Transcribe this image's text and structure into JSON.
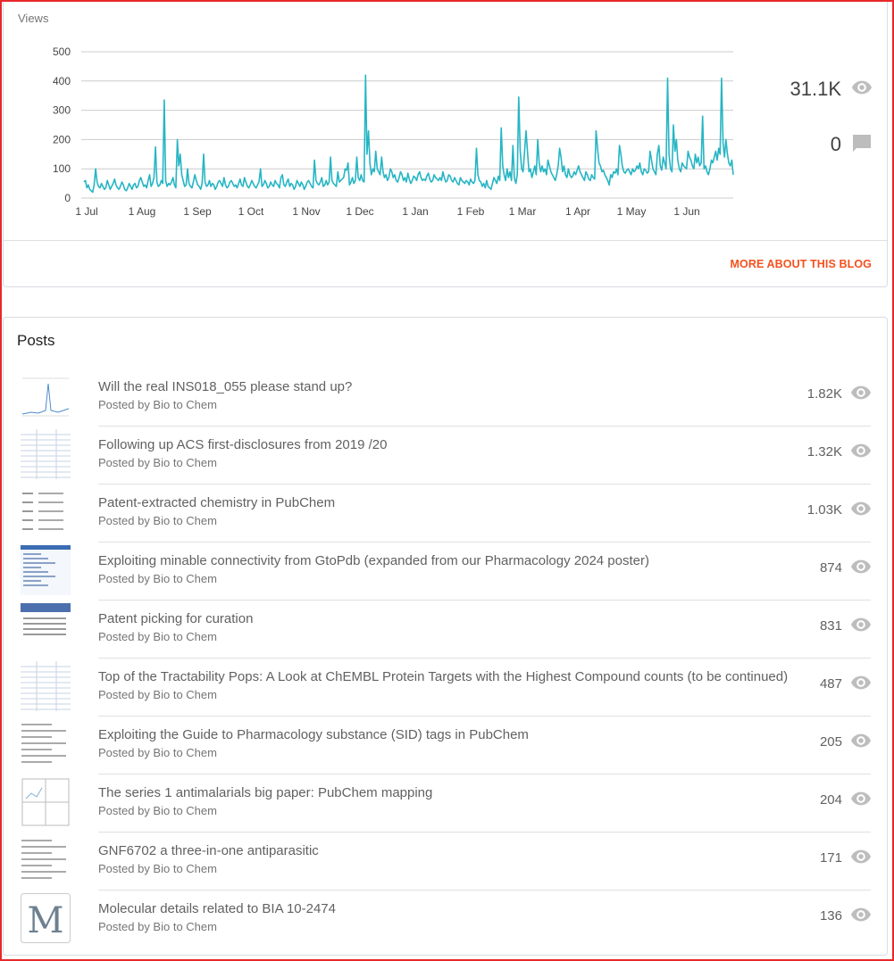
{
  "stats": {
    "views_label": "Views",
    "total_views": "31.1K",
    "total_comments": "0",
    "more_link": "MORE ABOUT THIS BLOG",
    "accent_color": "#26b5c4",
    "link_color": "#f4511e"
  },
  "chart_data": {
    "type": "line",
    "ylim": [
      0,
      500
    ],
    "yticks": [
      "0",
      "100",
      "200",
      "300",
      "400",
      "500"
    ],
    "xticks": [
      "1 Jul",
      "1 Aug",
      "1 Sep",
      "1 Oct",
      "1 Nov",
      "1 Dec",
      "1 Jan",
      "1 Feb",
      "1 Mar",
      "1 Apr",
      "1 May",
      "1 Jun"
    ],
    "grid": true,
    "series": [
      {
        "color": "#26b5c4",
        "values": [
          55,
          60,
          35,
          45,
          30,
          25,
          20,
          45,
          100,
          55,
          40,
          35,
          50,
          40,
          30,
          35,
          60,
          45,
          30,
          40,
          50,
          65,
          45,
          35,
          30,
          40,
          55,
          45,
          30,
          25,
          35,
          50,
          40,
          30,
          45,
          50,
          35,
          40,
          60,
          70,
          55,
          40,
          45,
          35,
          60,
          80,
          40,
          50,
          70,
          175,
          55,
          40,
          45,
          60,
          50,
          335,
          60,
          40,
          50,
          45,
          55,
          70,
          45,
          35,
          200,
          110,
          150,
          80,
          60,
          40,
          45,
          100,
          50,
          40,
          35,
          55,
          80,
          60,
          45,
          40,
          30,
          50,
          150,
          55,
          40,
          45,
          60,
          40,
          50,
          45,
          30,
          40,
          55,
          60,
          50,
          40,
          70,
          45,
          35,
          40,
          55,
          60,
          50,
          40,
          45,
          35,
          50,
          65,
          45,
          40,
          70,
          55,
          40,
          35,
          45,
          60,
          50,
          40,
          35,
          45,
          55,
          100,
          40,
          45,
          60,
          50,
          35,
          40,
          55,
          45,
          40,
          60,
          50,
          45,
          35,
          70,
          80,
          45,
          40,
          55,
          65,
          40,
          50,
          45,
          30,
          40,
          60,
          50,
          40,
          55,
          45,
          30,
          40,
          55,
          60,
          50,
          40,
          35,
          130,
          60,
          50,
          45,
          55,
          70,
          40,
          45,
          60,
          45,
          55,
          140,
          60,
          50,
          45,
          40,
          90,
          55,
          60,
          65,
          70,
          100,
          95,
          120,
          45,
          55,
          70,
          50,
          60,
          140,
          70,
          60,
          80,
          60,
          55,
          420,
          150,
          230,
          120,
          80,
          100,
          90,
          160,
          100,
          90,
          80,
          140,
          90,
          70,
          80,
          60,
          70,
          100,
          90,
          70,
          80,
          60,
          55,
          70,
          90,
          80,
          60,
          70,
          55,
          85,
          65,
          50,
          60,
          75,
          70,
          60,
          80,
          90,
          70,
          60,
          65,
          60,
          75,
          85,
          65,
          55,
          60,
          80,
          70,
          65,
          60,
          70,
          60,
          90,
          70,
          55,
          60,
          80,
          75,
          60,
          55,
          70,
          60,
          50,
          45,
          70,
          60,
          55,
          50,
          60,
          55,
          45,
          65,
          55,
          50,
          60,
          170,
          80,
          60,
          55,
          40,
          50,
          35,
          60,
          40,
          35,
          30,
          50,
          70,
          60,
          50,
          75,
          60,
          240,
          110,
          80,
          60,
          100,
          70,
          90,
          60,
          180,
          70,
          50,
          80,
          345,
          160,
          100,
          90,
          160,
          230,
          160,
          90,
          100,
          70,
          90,
          110,
          80,
          200,
          120,
          90,
          110,
          90,
          100,
          80,
          130,
          110,
          90,
          80,
          70,
          60,
          80,
          110,
          170,
          140,
          90,
          110,
          80,
          70,
          100,
          80,
          70,
          75,
          90,
          80,
          95,
          110,
          90,
          80,
          70,
          60,
          90,
          80,
          65,
          60,
          80,
          70,
          65,
          230,
          170,
          120,
          110,
          90,
          95,
          80,
          70,
          60,
          45,
          80,
          70,
          90,
          85,
          100,
          80,
          180,
          150,
          110,
          90,
          85,
          95,
          100,
          90,
          80,
          100,
          90,
          95,
          110,
          100,
          120,
          90,
          80,
          100,
          95,
          85,
          90,
          160,
          130,
          100,
          90,
          80,
          150,
          180,
          110,
          95,
          140,
          120,
          100,
          410,
          150,
          100,
          90,
          250,
          160,
          200,
          130,
          100,
          90,
          120,
          110,
          105,
          100,
          160,
          140,
          130,
          110,
          100,
          150,
          120,
          140,
          110,
          120,
          280,
          100,
          110,
          90,
          80,
          100,
          130,
          120,
          140,
          160,
          130,
          170,
          150,
          410,
          190,
          140,
          200,
          150,
          120,
          110,
          130,
          80
        ]
      }
    ]
  },
  "posts": {
    "title": "Posts",
    "items": [
      {
        "title": "Will the real INS018_055 please stand up?",
        "byline": "Posted by Bio to Chem",
        "views": "1.82K",
        "thumb": "chart-thumb-icon"
      },
      {
        "title": "Following up ACS first-disclosures from 2019 /20",
        "byline": "Posted by Bio to Chem",
        "views": "1.32K",
        "thumb": "table-thumb-icon"
      },
      {
        "title": "Patent-extracted chemistry in PubChem",
        "byline": "Posted by Bio to Chem",
        "views": "1.03K",
        "thumb": "list-thumb-icon"
      },
      {
        "title": "Exploiting minable connectivity from GtoPdb (expanded from our Pharmacology 2024 poster)",
        "byline": "Posted by Bio to Chem",
        "views": "874",
        "thumb": "poster-thumb-icon"
      },
      {
        "title": "Patent picking for curation",
        "byline": "Posted by Bio to Chem",
        "views": "831",
        "thumb": "slide-thumb-icon"
      },
      {
        "title": "Top of the Tractability Pops: A Look at ChEMBL Protein Targets with the Highest Compound counts (to be continued)",
        "byline": "Posted by Bio to Chem",
        "views": "487",
        "thumb": "table-thumb-icon"
      },
      {
        "title": "Exploiting the Guide to Pharmacology substance (SID) tags in PubChem",
        "byline": "Posted by Bio to Chem",
        "views": "205",
        "thumb": "text-thumb-icon"
      },
      {
        "title": "The series 1 antimalarials big paper: PubChem mapping",
        "byline": "Posted by Bio to Chem",
        "views": "204",
        "thumb": "grid-thumb-icon"
      },
      {
        "title": "GNF6702 a three-in-one antiparasitic",
        "byline": "Posted by Bio to Chem",
        "views": "171",
        "thumb": "text-thumb-icon"
      },
      {
        "title": "Molecular details related to BIA 10-2474",
        "byline": "Posted by Bio to Chem",
        "views": "136",
        "thumb": "letter-m-thumb-icon",
        "thumb_letter": "M"
      }
    ]
  }
}
